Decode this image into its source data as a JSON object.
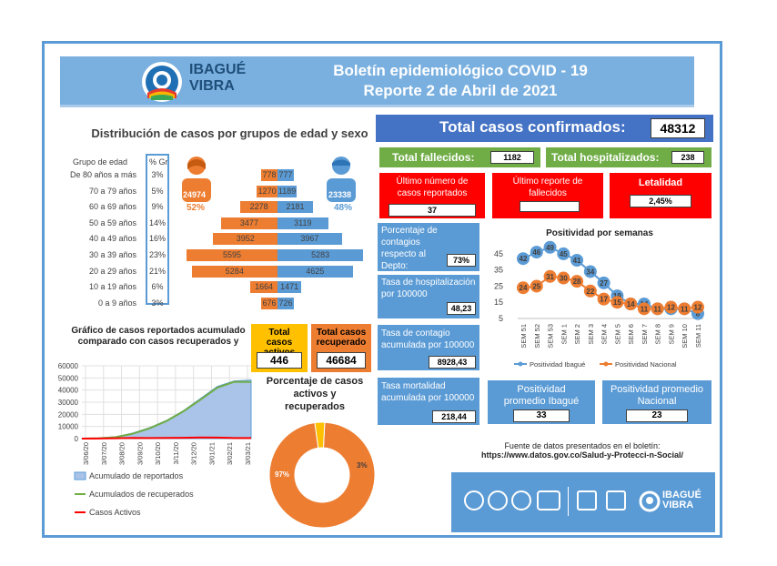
{
  "header": {
    "logo_text": "IBAGUÉ VIBRA",
    "title_line1": "Boletín epidemiológico COVID - 19",
    "title_line2": "Reporte 2 de Abril de 2021"
  },
  "age_section": {
    "title": "Distribución de casos por grupos de edad y sexo",
    "col_group": "Grupo de edad",
    "col_pct": "% Gr",
    "female_total": "24974",
    "female_pct": "52%",
    "male_total": "23338",
    "male_pct": "48%",
    "rows": [
      {
        "label": "De 80 años a más",
        "pct": "3%",
        "female": 778,
        "male": 777
      },
      {
        "label": "70 a 79 años",
        "pct": "5%",
        "female": 1270,
        "male": 1189
      },
      {
        "label": "60 a 69 años",
        "pct": "9%",
        "female": 2278,
        "male": 2181
      },
      {
        "label": "50 a 59 años",
        "pct": "14%",
        "female": 3477,
        "male": 3119
      },
      {
        "label": "40 a 49 años",
        "pct": "16%",
        "female": 3952,
        "male": 3967
      },
      {
        "label": "30 a 39 años",
        "pct": "23%",
        "female": 5595,
        "male": 5283
      },
      {
        "label": "20 a 29 años",
        "pct": "21%",
        "female": 5284,
        "male": 4625
      },
      {
        "label": "10 a 19 años",
        "pct": "6%",
        "female": 1664,
        "male": 1471
      },
      {
        "label": "0 a 9 años",
        "pct": "3%",
        "female": 676,
        "male": 726
      }
    ]
  },
  "totals": {
    "confirmed_label": "Total casos confirmados:",
    "confirmed_value": "48312",
    "deaths_label": "Total fallecidos:",
    "deaths_value": "1182",
    "hosp_label": "Total hospitalizados:",
    "hosp_value": "238"
  },
  "red_panels": {
    "last_cases_label": "Último número de casos reportados",
    "last_cases_value": "37",
    "last_deaths_label": "Último reporte de fallecidos",
    "last_deaths_value": "",
    "lethality_label": "Letalidad",
    "lethality_value": "2,45%"
  },
  "stats": {
    "pct_contagios_label": "Porcentaje de contagios respecto al Depto:",
    "pct_contagios_value": "73%",
    "hosp_rate_label": "Tasa de hospitalización por 100000",
    "hosp_rate_value": "48,23",
    "contagio_rate_label": "Tasa de contagio acumulada por 100000",
    "contagio_rate_value": "8928,43",
    "mort_rate_label": "Tasa mortalidad acumulada por 100000",
    "mort_rate_value": "218,44",
    "pos_ibague_label": "Positividad promedio Ibagué",
    "pos_ibague_value": "33",
    "pos_nacional_label": "Positividad promedio Nacional",
    "pos_nacional_value": "23"
  },
  "active": {
    "active_label": "Total casos activos",
    "active_value": "446",
    "recovered_label": "Total casos recuperado",
    "recovered_value": "46684",
    "donut_title": "Porcentaje de casos activos y recuperados",
    "donut_recovered_pct": "97%",
    "donut_active_pct": "3%"
  },
  "source": {
    "line1": "Fuente de datos presentados en el boletín:",
    "line2": "https://www.datos.gov.co/Salud-y-Protecci-n-Social/"
  },
  "footer": {
    "logo_text": "IBAGUÉ VIBRA"
  },
  "colors": {
    "blue": "#5b9bd5",
    "orange": "#ed7d31",
    "green": "#70ad47",
    "red": "#ff0000"
  },
  "chart_data": [
    {
      "type": "line",
      "title": "Positividad por semanas",
      "categories": [
        "SEM 51",
        "SEM 52",
        "SEM 53",
        "SEM 1",
        "SEM 2",
        "SEM 3",
        "SEM 4",
        "SEM 5",
        "SEM 6",
        "SEM 7",
        "SEM 8",
        "SEM 9",
        "SEM 10",
        "SEM 11"
      ],
      "series": [
        {
          "name": "Positividad Ibagué",
          "values": [
            42,
            46,
            49,
            45,
            41,
            34,
            27,
            19,
            14,
            14,
            11,
            11,
            11,
            8
          ],
          "color": "#5b9bd5"
        },
        {
          "name": "Positividad Nacional",
          "values": [
            24,
            25,
            31,
            30,
            28,
            22,
            17,
            15,
            14,
            11,
            11,
            12,
            11,
            12
          ],
          "color": "#ed7d31"
        }
      ],
      "y_ticks": [
        5,
        15,
        25,
        35,
        45
      ],
      "ylim": [
        5,
        50
      ]
    },
    {
      "type": "area",
      "title": "Gráfico de casos reportados acumulado comparado con casos recuperados y",
      "x_ticks": [
        "3/06/20",
        "3/07/20",
        "3/08/20",
        "3/09/20",
        "3/10/20",
        "3/11/20",
        "3/12/20",
        "3/01/21",
        "3/02/21",
        "3/03/21"
      ],
      "y_ticks": [
        0,
        10000,
        20000,
        30000,
        40000,
        50000,
        60000
      ],
      "ylim": [
        0,
        60000
      ],
      "series": [
        {
          "name": "Acumulado de reportados",
          "values": [
            50,
            400,
            1500,
            4500,
            9000,
            15000,
            23000,
            33000,
            43000,
            47500,
            48300
          ],
          "color": "#5b9bd5"
        },
        {
          "name": "Acumulados de recuperados",
          "values": [
            30,
            300,
            1200,
            4000,
            8500,
            14500,
            22500,
            32000,
            42000,
            46800,
            46700
          ],
          "color": "#70ad47"
        },
        {
          "name": "Casos Activos",
          "values": [
            20,
            100,
            300,
            600,
            500,
            600,
            700,
            900,
            800,
            500,
            446
          ],
          "color": "#ff0000"
        }
      ]
    },
    {
      "type": "pie",
      "title": "Porcentaje de casos activos y recuperados",
      "slices": [
        {
          "name": "Recuperados",
          "value": 97,
          "color": "#ed7d31"
        },
        {
          "name": "Activos",
          "value": 3,
          "color": "#ffc000"
        }
      ]
    }
  ]
}
